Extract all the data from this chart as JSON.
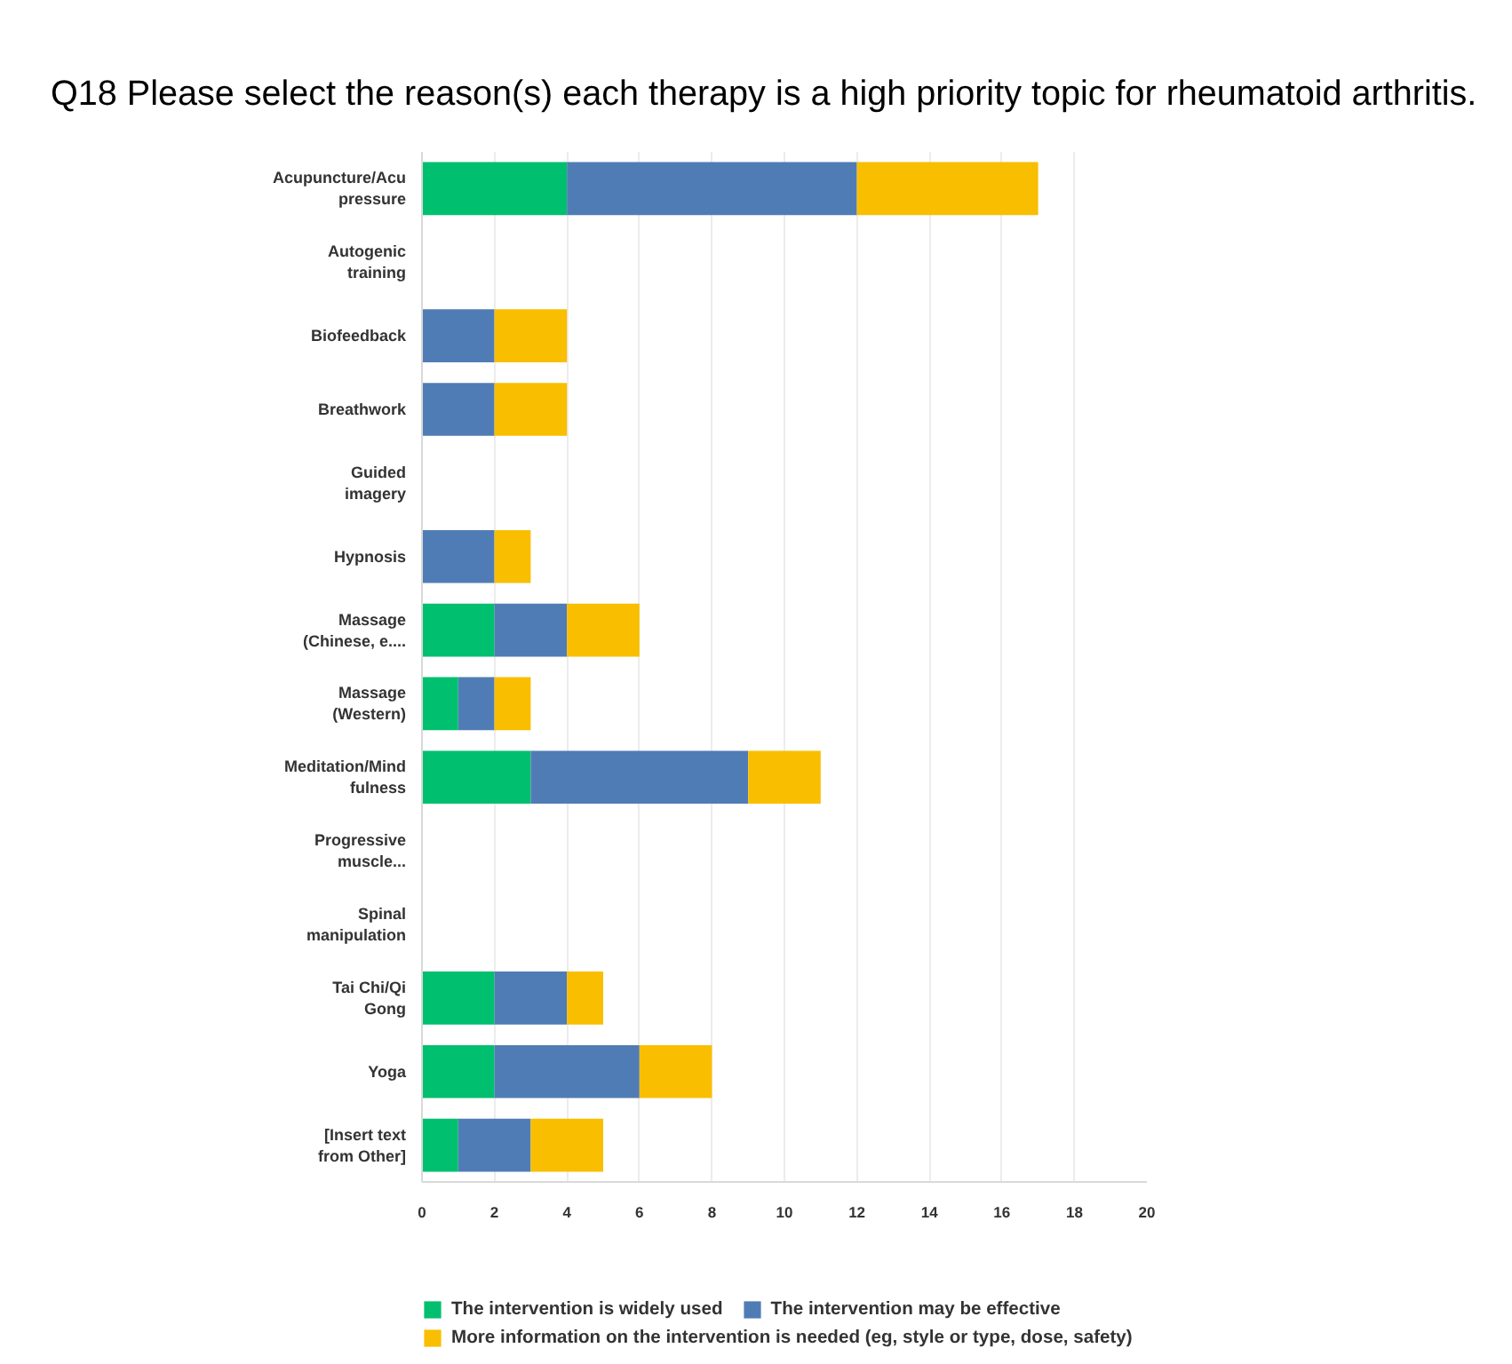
{
  "chart_data": {
    "type": "bar",
    "orientation": "horizontal",
    "stacked": true,
    "title": "Q18 Please select the reason(s) each therapy is a high priority topic for rheumatoid arthritis.",
    "categories": [
      "Acupuncture/Acu\npressure",
      "Autogenic\ntraining",
      "Biofeedback",
      "Breathwork",
      "Guided\nimagery",
      "Hypnosis",
      "Massage\n(Chinese, e....",
      "Massage\n(Western)",
      "Meditation/Mind\nfulness",
      "Progressive\nmuscle...",
      "Spinal\nmanipulation",
      "Tai Chi/Qi\nGong",
      "Yoga",
      "[Insert text\nfrom Other]"
    ],
    "series": [
      {
        "name": "The intervention is widely used",
        "color": "#00bf6f",
        "values": [
          4,
          0,
          0,
          0,
          0,
          0,
          2,
          1,
          3,
          0,
          0,
          2,
          2,
          1
        ]
      },
      {
        "name": "The intervention may be effective",
        "color": "#507cb6",
        "values": [
          8,
          0,
          2,
          2,
          0,
          2,
          2,
          1,
          6,
          0,
          0,
          2,
          4,
          2
        ]
      },
      {
        "name": "More information on the intervention is needed (eg, style or type, dose, safety)",
        "color": "#f9be00",
        "values": [
          5,
          0,
          2,
          2,
          0,
          1,
          2,
          1,
          2,
          0,
          0,
          1,
          2,
          2
        ]
      }
    ],
    "xlim": [
      0,
      20
    ],
    "xticks": [
      0,
      2,
      4,
      6,
      8,
      10,
      12,
      14,
      16,
      18,
      20
    ],
    "grid": "x",
    "legend": "bottom"
  }
}
